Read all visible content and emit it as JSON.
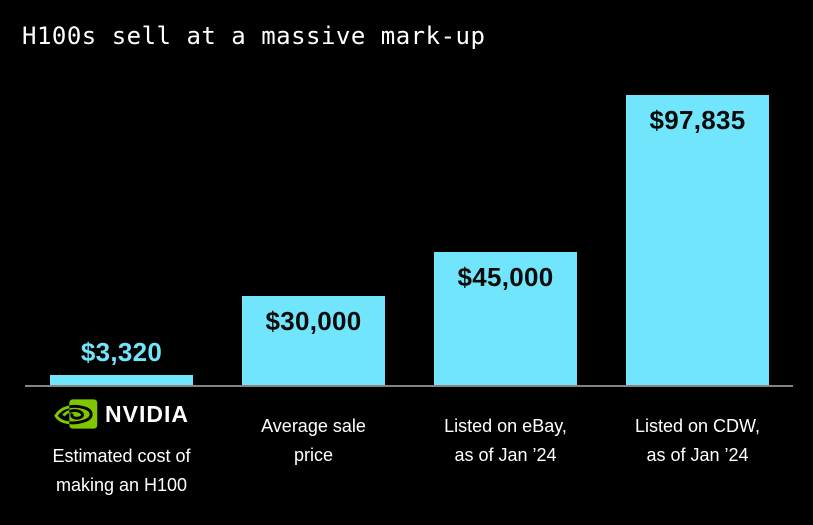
{
  "page": {
    "background": "#000000"
  },
  "chart_data": {
    "type": "bar",
    "title": "H100s sell at a massive mark-up",
    "xlabel": "",
    "ylabel": "",
    "ylim": [
      0,
      100000
    ],
    "grid": false,
    "legend": false,
    "background": "#000000",
    "bar_color": "#70E5FB",
    "axis_line_color": "#848484",
    "value_label_inside_color": "#0b0b0b",
    "value_label_above_color": "#70E5FB",
    "category_text_color": "#ffffff",
    "categories": [
      "Estimated cost of making an H100",
      "Average sale price",
      "Listed on eBay, as of Jan ’24",
      "Listed on CDW, as of Jan ’24"
    ],
    "values": [
      3320,
      30000,
      45000,
      97835
    ],
    "bars": [
      {
        "value": 3320,
        "value_label": "$3,320",
        "label_position": "above",
        "category_lines": [
          "Estimated cost of",
          "making an H100"
        ],
        "logo": {
          "name": "nvidia",
          "icon": "nvidia-eye-icon",
          "wordmark": "NVIDIA",
          "badge_color": "#7FC800"
        }
      },
      {
        "value": 30000,
        "value_label": "$30,000",
        "label_position": "inside",
        "category_lines": [
          "Average sale",
          "price"
        ]
      },
      {
        "value": 45000,
        "value_label": "$45,000",
        "label_position": "inside",
        "category_lines": [
          "Listed on eBay,",
          "as of Jan ’24"
        ]
      },
      {
        "value": 97835,
        "value_label": "$97,835",
        "label_position": "inside",
        "category_lines": [
          "Listed on CDW,",
          "as of Jan ’24"
        ]
      }
    ]
  }
}
